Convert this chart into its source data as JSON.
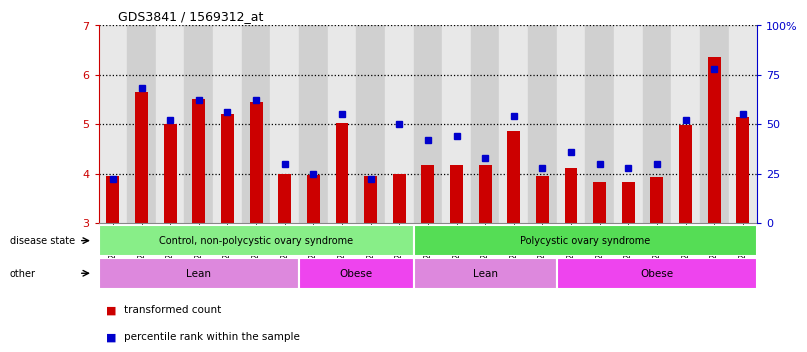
{
  "title": "GDS3841 / 1569312_at",
  "samples": [
    "GSM277438",
    "GSM277439",
    "GSM277440",
    "GSM277441",
    "GSM277442",
    "GSM277443",
    "GSM277444",
    "GSM277445",
    "GSM277446",
    "GSM277447",
    "GSM277448",
    "GSM277449",
    "GSM277450",
    "GSM277451",
    "GSM277452",
    "GSM277453",
    "GSM277454",
    "GSM277455",
    "GSM277456",
    "GSM277457",
    "GSM277458",
    "GSM277459",
    "GSM277460"
  ],
  "bar_values": [
    3.95,
    5.65,
    5.0,
    5.5,
    5.2,
    5.45,
    4.0,
    3.98,
    5.02,
    3.95,
    4.0,
    4.18,
    4.18,
    4.18,
    4.85,
    3.95,
    4.12,
    3.82,
    3.82,
    3.92,
    4.98,
    6.35,
    5.15
  ],
  "dot_values": [
    22,
    68,
    52,
    62,
    56,
    62,
    30,
    25,
    55,
    22,
    50,
    42,
    44,
    33,
    54,
    28,
    36,
    30,
    28,
    30,
    52,
    78,
    55
  ],
  "ylim_left": [
    3,
    7
  ],
  "ylim_right": [
    0,
    100
  ],
  "yticks_left": [
    3,
    4,
    5,
    6,
    7
  ],
  "yticks_right": [
    0,
    25,
    50,
    75,
    100
  ],
  "ytick_labels_right": [
    "0",
    "25",
    "50",
    "75",
    "100%"
  ],
  "bar_color": "#cc0000",
  "dot_color": "#0000cc",
  "disease_state_labels": [
    "Control, non-polycystic ovary syndrome",
    "Polycystic ovary syndrome"
  ],
  "disease_state_colors": [
    "#88ee88",
    "#55dd55"
  ],
  "other_labels": [
    "Lean",
    "Obese",
    "Lean",
    "Obese"
  ],
  "other_colors": [
    "#dd88dd",
    "#ee44ee",
    "#dd88dd",
    "#ee44ee"
  ],
  "disease_state_boundaries": [
    0,
    11,
    23
  ],
  "other_boundaries": [
    0,
    7,
    11,
    16,
    23
  ],
  "legend_items": [
    "transformed count",
    "percentile rank within the sample"
  ],
  "legend_colors": [
    "#cc0000",
    "#0000cc"
  ],
  "row_labels": [
    "disease state",
    "other"
  ],
  "col_bg_even": "#e8e8e8",
  "col_bg_odd": "#d0d0d0",
  "fig_bg": "#ffffff",
  "plot_bg": "#ffffff"
}
